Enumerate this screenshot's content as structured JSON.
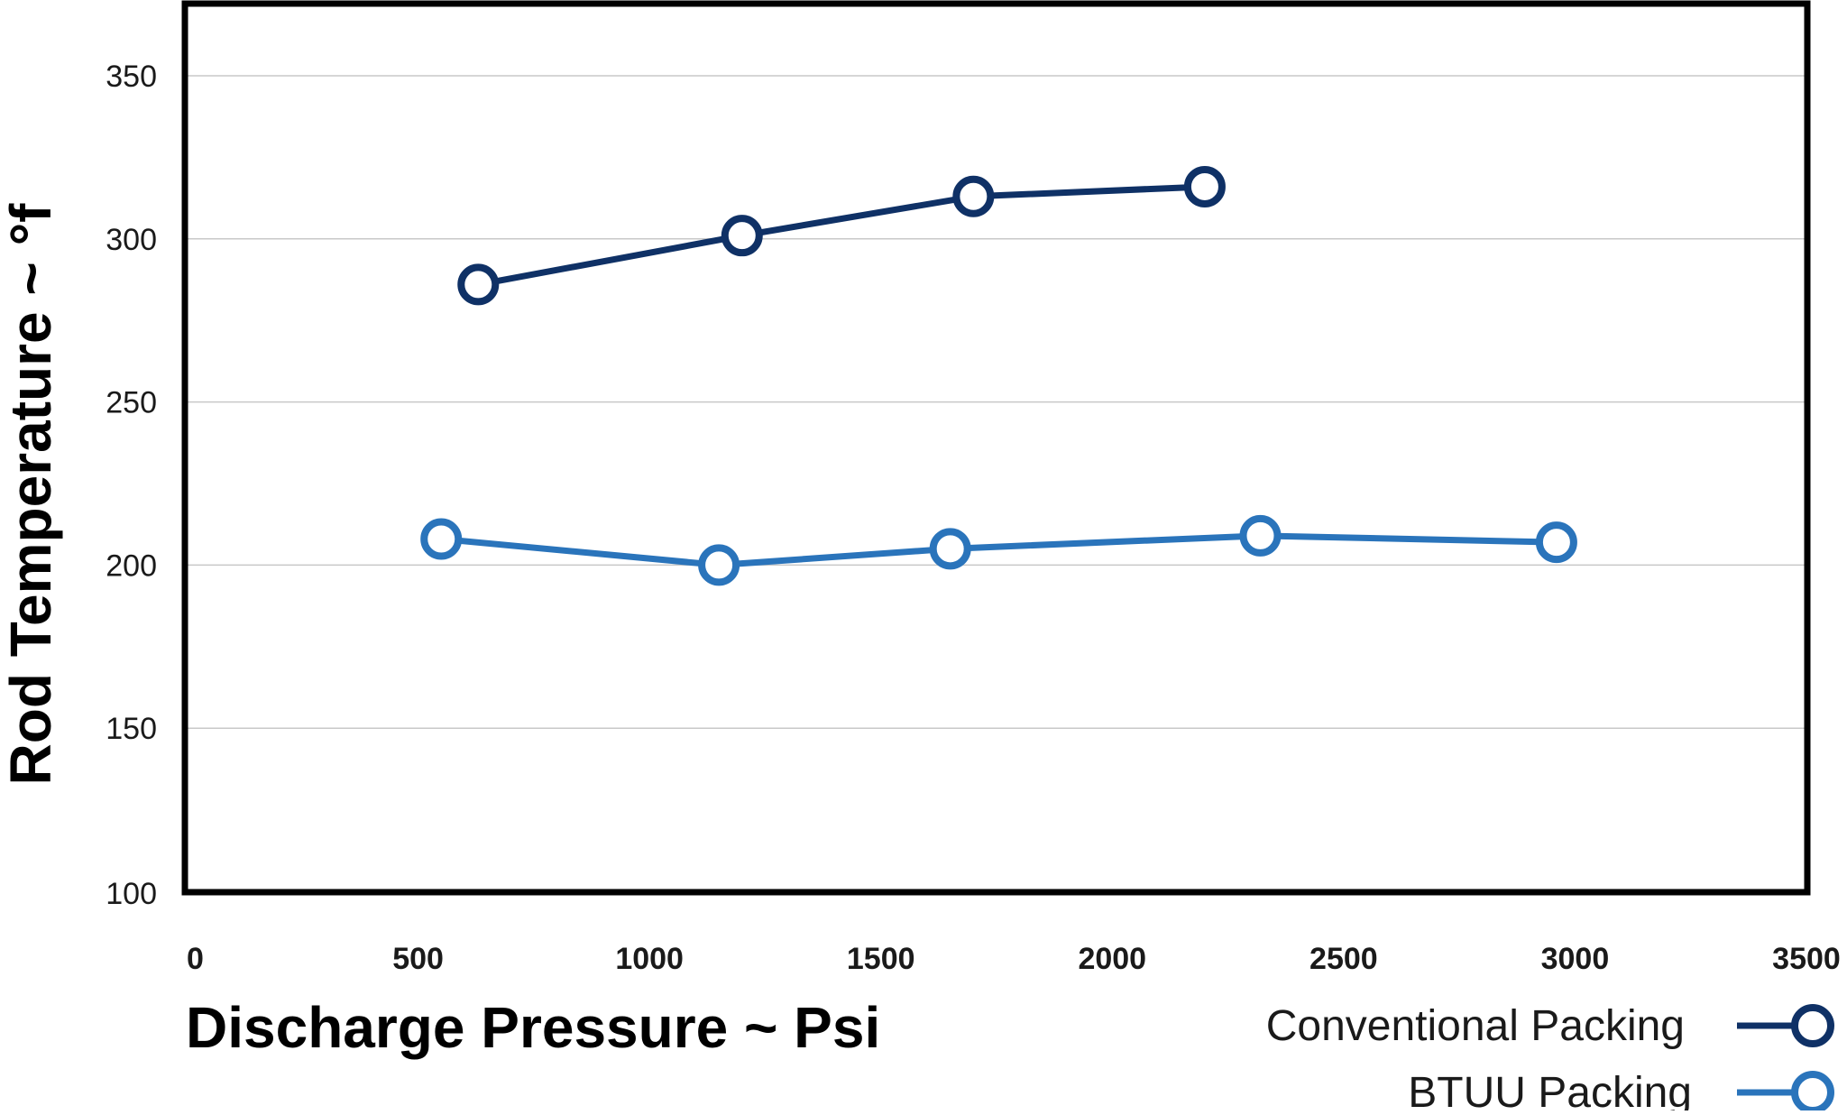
{
  "chart_data": {
    "type": "line",
    "xlabel": "Discharge Pressure ~ Psi",
    "ylabel": "Rod Temperature ~ °f",
    "xlim": [
      0,
      3500
    ],
    "ylim": [
      100,
      350
    ],
    "x_ticks": [
      "0",
      "500",
      "1000",
      "1500",
      "2000",
      "2500",
      "3000",
      "3500"
    ],
    "x_tick_values": [
      0,
      500,
      1000,
      1500,
      2000,
      2500,
      3000,
      3500
    ],
    "y_ticks": [
      "100",
      "150",
      "200",
      "250",
      "300",
      "350"
    ],
    "y_tick_values": [
      100,
      150,
      200,
      250,
      300,
      350
    ],
    "grid": "horizontal",
    "legend_position": "bottom-right",
    "series": [
      {
        "name": "Conventional Packing",
        "color": "#0f3166",
        "x": [
          630,
          1200,
          1700,
          2200
        ],
        "y": [
          286,
          301,
          313,
          316
        ]
      },
      {
        "name": "BTUU Packing",
        "color": "#2a74bb",
        "x": [
          550,
          1150,
          1650,
          2320,
          2960
        ],
        "y": [
          208,
          200,
          205,
          209,
          207
        ]
      }
    ]
  }
}
